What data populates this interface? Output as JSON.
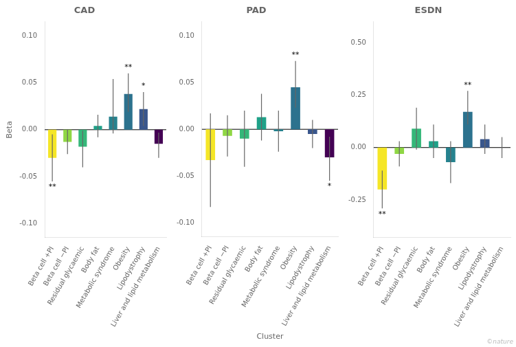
{
  "chart_data": [
    {
      "type": "bar",
      "title": "CAD",
      "ylabel": "Beta",
      "categories": [
        "Beta cell +PI",
        "Beta cell −PI",
        "Residual glycaemic",
        "Body fat",
        "Metabolic syndrome",
        "Obesity",
        "Lipodystrophy",
        "Liver and lipid metabolism"
      ],
      "values": [
        -0.03,
        -0.013,
        -0.018,
        0.004,
        0.014,
        0.038,
        0.022,
        -0.015
      ],
      "err_low": [
        0.025,
        0.013,
        0.022,
        0.012,
        0.018,
        0.019,
        0.018,
        0.015
      ],
      "err_high": [
        0.025,
        0.013,
        0.017,
        0.012,
        0.04,
        0.022,
        0.018,
        0.012
      ],
      "colors": [
        "#f5e626",
        "#8fd744",
        "#35b779",
        "#1fa188",
        "#26828e",
        "#2c728e",
        "#39568c",
        "#440154"
      ],
      "annotations": [
        {
          "category": "Beta cell +PI",
          "text": "**",
          "position": "bottom"
        },
        {
          "category": "Obesity",
          "text": "**",
          "position": "top"
        },
        {
          "category": "Lipodystrophy",
          "text": "*",
          "position": "top"
        }
      ],
      "ylim": [
        -0.115,
        0.115
      ],
      "yticks": [
        {
          "value": -0.1,
          "label": "-0.10"
        },
        -0.05,
        {
          "value": 0,
          "label": "0.00"
        },
        0.05,
        {
          "value": 0.1,
          "label": "0.10"
        }
      ],
      "grid": false
    },
    {
      "type": "bar",
      "title": "PAD",
      "xlabel": "Cluster",
      "categories": [
        "Beta cell +PI",
        "Beta cell −PI",
        "Residual glycaemic",
        "Body fat",
        "Metabolic syndrome",
        "Obesity",
        "Lipodystrophy",
        "Liver and lipid metabolism"
      ],
      "values": [
        -0.033,
        -0.007,
        -0.01,
        0.013,
        -0.002,
        0.045,
        -0.005,
        -0.03
      ],
      "err_low": [
        0.05,
        0.022,
        0.03,
        0.025,
        0.022,
        0.022,
        0.015,
        0.025
      ],
      "err_high": [
        0.05,
        0.022,
        0.03,
        0.025,
        0.022,
        0.028,
        0.015,
        0.022
      ],
      "colors": [
        "#f5e626",
        "#8fd744",
        "#35b779",
        "#1fa188",
        "#26828e",
        "#2c728e",
        "#39568c",
        "#440154"
      ],
      "annotations": [
        {
          "category": "Obesity",
          "text": "**",
          "position": "top"
        },
        {
          "category": "Liver and lipid metabolism",
          "text": "*",
          "position": "bottom"
        }
      ],
      "ylim": [
        -0.115,
        0.115
      ],
      "yticks": [
        {
          "value": -0.1,
          "label": "-0.10"
        },
        -0.05,
        {
          "value": 0,
          "label": "0.00"
        },
        0.05,
        {
          "value": 0.1,
          "label": "0.10"
        }
      ],
      "grid": false
    },
    {
      "type": "bar",
      "title": "ESDN",
      "categories": [
        "Beta cell +PI",
        "Beta cell −PI",
        "Residual glycaemic",
        "Body fat",
        "Metabolic syndrome",
        "Obesity",
        "Lipodystrophy",
        "Liver and lipid metabolism"
      ],
      "values": [
        -0.2,
        -0.03,
        0.09,
        0.03,
        -0.07,
        0.17,
        0.04,
        0.0
      ],
      "err_low": [
        0.09,
        0.06,
        0.1,
        0.08,
        0.1,
        0.06,
        0.07,
        0.05
      ],
      "err_high": [
        0.09,
        0.06,
        0.1,
        0.08,
        0.1,
        0.1,
        0.07,
        0.05
      ],
      "colors": [
        "#f5e626",
        "#8fd744",
        "#35b779",
        "#1fa188",
        "#26828e",
        "#2c728e",
        "#39568c",
        "#7d03a8"
      ],
      "annotations": [
        {
          "category": "Beta cell +PI",
          "text": "**",
          "position": "bottom"
        },
        {
          "category": "Obesity",
          "text": "**",
          "position": "top"
        },
        {
          "text": "©nature",
          "color": "#bbbbbb"
        }
      ],
      "ylim": [
        -0.43,
        0.6
      ],
      "yticks": [
        -0.25,
        {
          "value": 0,
          "label": "0.00"
        },
        0.25,
        {
          "value": 0.5,
          "label": "0.50"
        }
      ],
      "grid": false
    }
  ]
}
